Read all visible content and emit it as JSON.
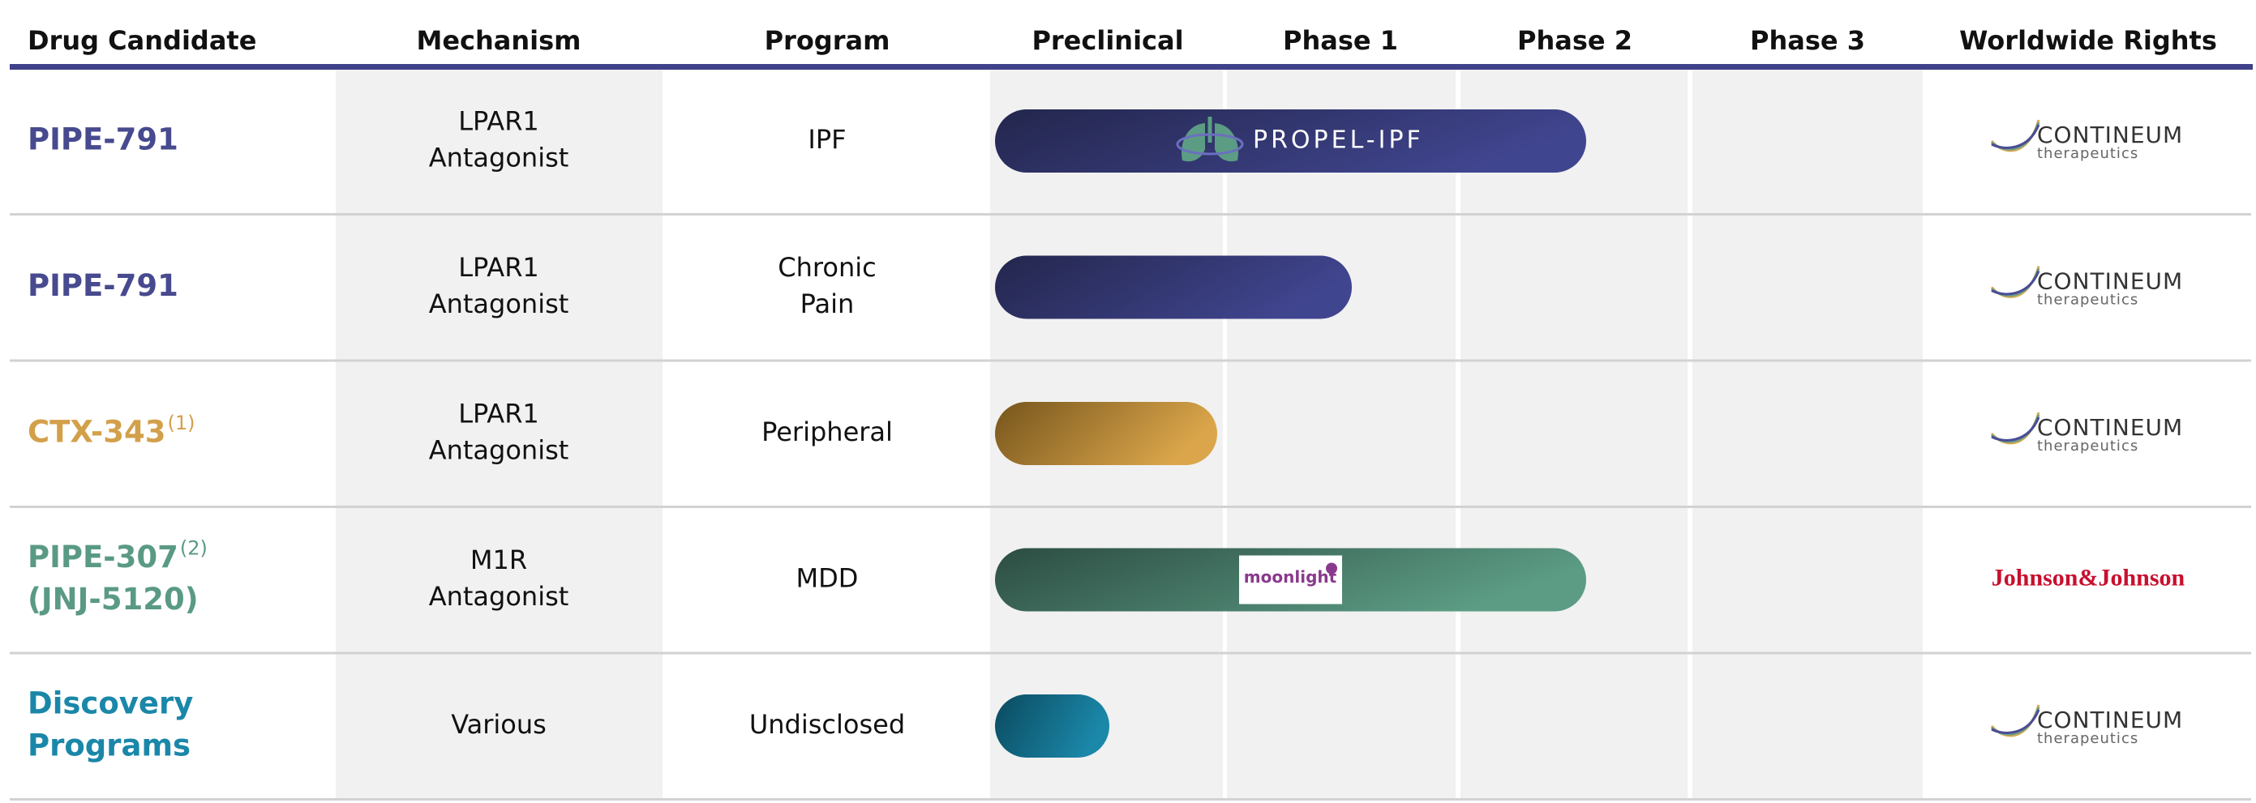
{
  "header": {
    "columns": [
      "Drug Candidate",
      "Mechanism",
      "Program",
      "Preclinical",
      "Phase 1",
      "Phase 2",
      "Phase 3",
      "Worldwide Rights"
    ]
  },
  "rows": [
    {
      "candidate": [
        "PIPE-791"
      ],
      "mechanism": [
        "LPAR1",
        "Antagonist"
      ],
      "program": [
        "IPF"
      ],
      "trial": "PROPEL-IPF",
      "rights": {
        "name": "CONTINEUM",
        "sub": "therapeutics"
      }
    },
    {
      "candidate": [
        "PIPE-791"
      ],
      "mechanism": [
        "LPAR1",
        "Antagonist"
      ],
      "program": [
        "Chronic",
        "Pain"
      ],
      "rights": {
        "name": "CONTINEUM",
        "sub": "therapeutics"
      }
    },
    {
      "candidate": [
        "CTX-343"
      ],
      "note": "(1)",
      "mechanism": [
        "LPAR1",
        "Antagonist"
      ],
      "program": [
        "Peripheral"
      ],
      "rights": {
        "name": "CONTINEUM",
        "sub": "therapeutics"
      }
    },
    {
      "candidate": [
        "PIPE-307",
        "(JNJ-5120)"
      ],
      "note": "(2)",
      "mechanism": [
        "M1R",
        "Antagonist"
      ],
      "program": [
        "MDD"
      ],
      "logo": "moonlight",
      "rights": {
        "name": "Johnson&Johnson"
      }
    },
    {
      "candidate": [
        "Discovery",
        "Programs"
      ],
      "mechanism": [
        "Various"
      ],
      "program": [
        "Undisclosed"
      ],
      "rights": {
        "name": "CONTINEUM",
        "sub": "therapeutics"
      }
    }
  ]
}
